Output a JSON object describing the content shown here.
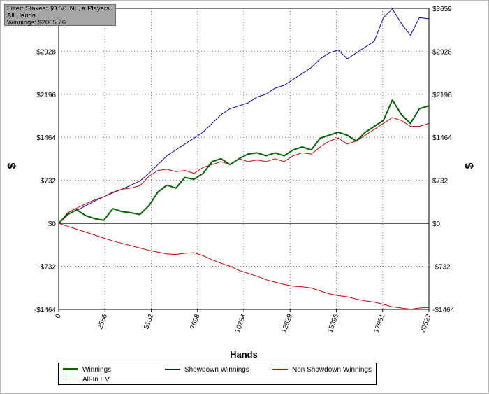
{
  "filter_box": {
    "line1": "Filter: Stakes: $0.5/1 NL, # Players",
    "line2": "All Hands",
    "line3": "Winnings: $2005.76"
  },
  "chart_data": {
    "type": "line",
    "title": "",
    "xlabel": "Hands",
    "ylabel": "$",
    "xlim": [
      0,
      20527
    ],
    "ylim": [
      -1464,
      3659
    ],
    "x_ticks": [
      0,
      2566,
      5132,
      7698,
      10264,
      12829,
      15395,
      17961,
      20527
    ],
    "y_ticks": [
      -1464,
      -732,
      0,
      732,
      1464,
      2196,
      2928,
      3659
    ],
    "y_tick_labels": [
      "-$1464",
      "-$732",
      "$0",
      "$732",
      "$1464",
      "$2196",
      "$2928",
      "$3659"
    ],
    "grid": true,
    "legend_position": "bottom",
    "series": [
      {
        "name": "Winnings",
        "color": "#006400",
        "x": [
          0,
          500,
          1000,
          1500,
          2000,
          2500,
          3000,
          3500,
          4000,
          4500,
          5000,
          5500,
          6000,
          6500,
          7000,
          7500,
          8000,
          8500,
          9000,
          9500,
          10000,
          10500,
          11000,
          11500,
          12000,
          12500,
          13000,
          13500,
          14000,
          14500,
          15000,
          15500,
          16000,
          16500,
          17000,
          17500,
          18000,
          18500,
          19000,
          19500,
          20000,
          20527
        ],
        "values": [
          0,
          150,
          230,
          130,
          80,
          50,
          250,
          200,
          180,
          150,
          300,
          530,
          650,
          600,
          780,
          750,
          850,
          1050,
          1100,
          1000,
          1100,
          1180,
          1200,
          1150,
          1200,
          1150,
          1250,
          1300,
          1250,
          1450,
          1500,
          1550,
          1500,
          1400,
          1550,
          1650,
          1750,
          2100,
          1850,
          1700,
          1950,
          2000
        ]
      },
      {
        "name": "Showdown Winnings",
        "color": "#0000cc",
        "x": [
          0,
          500,
          1000,
          1500,
          2000,
          2500,
          3000,
          3500,
          4000,
          4500,
          5000,
          5500,
          6000,
          6500,
          7000,
          7500,
          8000,
          8500,
          9000,
          9500,
          10000,
          10500,
          11000,
          11500,
          12000,
          12500,
          13000,
          13500,
          14000,
          14500,
          15000,
          15500,
          16000,
          16500,
          17000,
          17500,
          18000,
          18500,
          19000,
          19500,
          20000,
          20527
        ],
        "values": [
          0,
          160,
          220,
          300,
          380,
          450,
          520,
          580,
          650,
          720,
          850,
          1000,
          1150,
          1250,
          1350,
          1450,
          1550,
          1700,
          1850,
          1950,
          2000,
          2050,
          2150,
          2200,
          2300,
          2350,
          2450,
          2550,
          2650,
          2800,
          2900,
          2950,
          2800,
          2900,
          3000,
          3100,
          3500,
          3650,
          3400,
          3200,
          3500,
          3480
        ]
      },
      {
        "name": "Non Showdown Winnings",
        "color": "#cc0000",
        "x": [
          0,
          500,
          1000,
          1500,
          2000,
          2500,
          3000,
          3500,
          4000,
          4500,
          5000,
          5500,
          6000,
          6500,
          7000,
          7500,
          8000,
          8500,
          9000,
          9500,
          10000,
          10500,
          11000,
          11500,
          12000,
          12500,
          13000,
          13500,
          14000,
          14500,
          15000,
          15500,
          16000,
          16500,
          17000,
          17500,
          18000,
          18500,
          19000,
          19500,
          20000,
          20527
        ],
        "values": [
          0,
          180,
          260,
          330,
          400,
          450,
          530,
          580,
          600,
          640,
          800,
          900,
          920,
          880,
          900,
          850,
          950,
          1000,
          1050,
          1000,
          1100,
          1050,
          1080,
          1050,
          1100,
          1050,
          1150,
          1200,
          1180,
          1300,
          1400,
          1450,
          1350,
          1400,
          1500,
          1600,
          1700,
          1800,
          1750,
          1650,
          1650,
          1700
        ]
      },
      {
        "name": "All-In EV",
        "color": "#cc0000",
        "x": [
          0,
          500,
          1000,
          1500,
          2000,
          2500,
          3000,
          3500,
          4000,
          4500,
          5000,
          5500,
          6000,
          6500,
          7000,
          7500,
          8000,
          8500,
          9000,
          9500,
          10000,
          10500,
          11000,
          11500,
          12000,
          12500,
          13000,
          13500,
          14000,
          14500,
          15000,
          15500,
          16000,
          16500,
          17000,
          17500,
          18000,
          18500,
          19000,
          19500,
          20000,
          20527
        ],
        "values": [
          0,
          -50,
          -100,
          -150,
          -200,
          -250,
          -300,
          -340,
          -380,
          -420,
          -460,
          -490,
          -520,
          -530,
          -510,
          -500,
          -550,
          -620,
          -680,
          -730,
          -800,
          -850,
          -900,
          -960,
          -1000,
          -1040,
          -1070,
          -1080,
          -1100,
          -1150,
          -1200,
          -1230,
          -1250,
          -1290,
          -1320,
          -1340,
          -1380,
          -1420,
          -1440,
          -1460,
          -1440,
          -1430
        ]
      }
    ]
  }
}
